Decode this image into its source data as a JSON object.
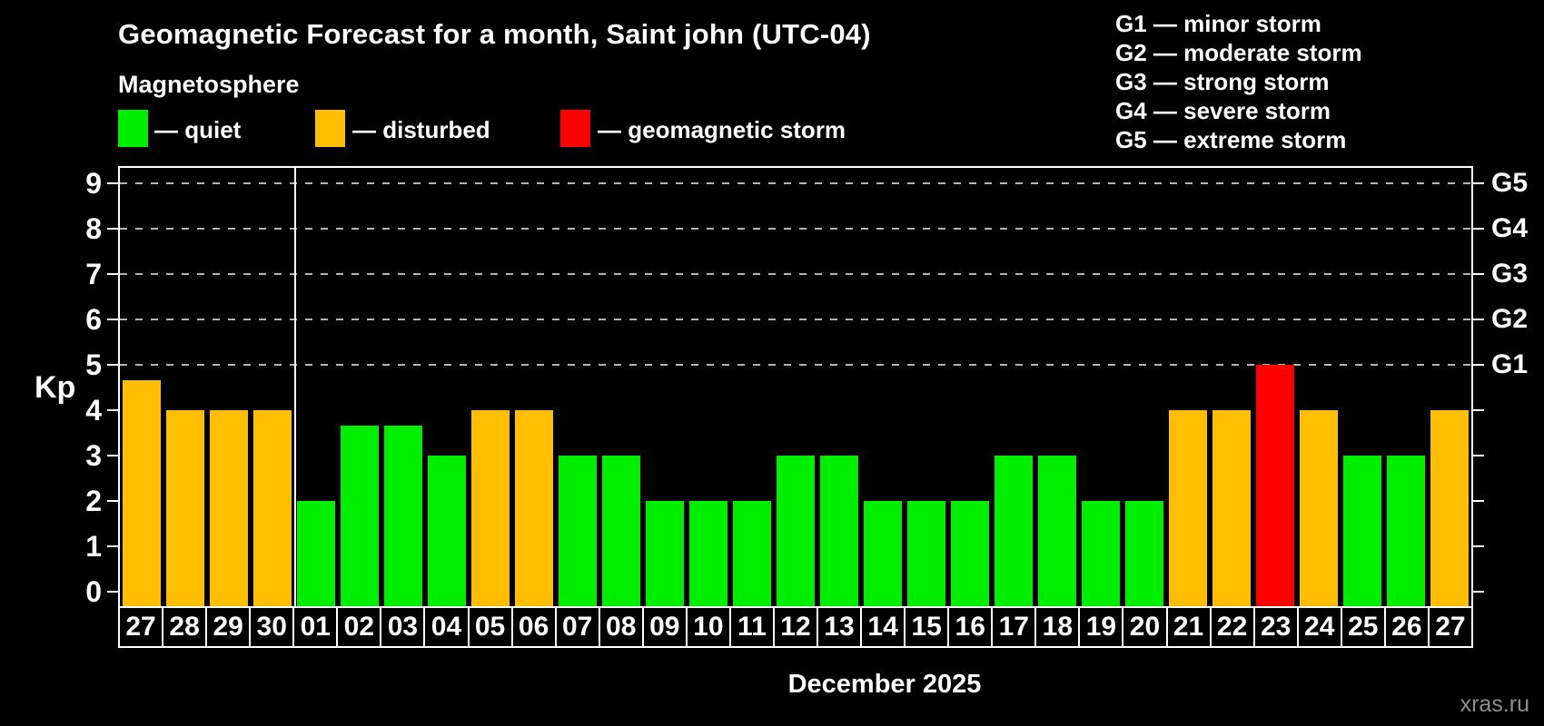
{
  "title": "Geomagnetic Forecast for a month, Saint john (UTC-04)",
  "subtitle": "Magnetosphere",
  "legend": {
    "quiet_label": "— quiet",
    "disturbed_label": "— disturbed",
    "storm_label": "— geomagnetic storm"
  },
  "g_scale_legend": [
    "G1 — minor storm",
    "G2 — moderate storm",
    "G3 — strong storm",
    "G4 — severe storm",
    "G5 — extreme storm"
  ],
  "colors": {
    "background": "#000000",
    "quiet": "#00ee00",
    "disturbed": "#ffbe00",
    "storm": "#fe0000",
    "grid": "#b4b4b4",
    "axis": "#ffffff",
    "watermark": "#8d8d8d"
  },
  "axis": {
    "ylabel": "Kp",
    "yticks": [
      0,
      1,
      2,
      3,
      4,
      5,
      6,
      7,
      8,
      9
    ],
    "right_ticks": [
      {
        "kp": 5,
        "label": "G1"
      },
      {
        "kp": 6,
        "label": "G2"
      },
      {
        "kp": 7,
        "label": "G3"
      },
      {
        "kp": 8,
        "label": "G4"
      },
      {
        "kp": 9,
        "label": "G5"
      }
    ]
  },
  "xlabel": "December 2025",
  "watermark": "xras.ru",
  "chart_data": {
    "type": "bar",
    "title": "Geomagnetic Forecast for a month, Saint john (UTC-04)",
    "ylabel": "Kp",
    "ylim": [
      0,
      9
    ],
    "gridline_kp": [
      5,
      6,
      7,
      8,
      9
    ],
    "month_separator_after_index": 3,
    "categories": [
      "27",
      "28",
      "29",
      "30",
      "01",
      "02",
      "03",
      "04",
      "05",
      "06",
      "07",
      "08",
      "09",
      "10",
      "11",
      "12",
      "13",
      "14",
      "15",
      "16",
      "17",
      "18",
      "19",
      "20",
      "21",
      "22",
      "23",
      "24",
      "25",
      "26",
      "27"
    ],
    "values": [
      4.67,
      4,
      4,
      4,
      2,
      3.67,
      3.67,
      3,
      4,
      4,
      3,
      3,
      2,
      2,
      2,
      3,
      3,
      2,
      2,
      2,
      3,
      3,
      2,
      2,
      4,
      4,
      5,
      4,
      3,
      3,
      4
    ],
    "status": [
      "disturbed",
      "disturbed",
      "disturbed",
      "disturbed",
      "quiet",
      "quiet",
      "quiet",
      "quiet",
      "disturbed",
      "disturbed",
      "quiet",
      "quiet",
      "quiet",
      "quiet",
      "quiet",
      "quiet",
      "quiet",
      "quiet",
      "quiet",
      "quiet",
      "quiet",
      "quiet",
      "quiet",
      "quiet",
      "disturbed",
      "disturbed",
      "storm",
      "disturbed",
      "quiet",
      "quiet",
      "disturbed"
    ],
    "legend_position": "top-left",
    "grid": "dashed horizontal at Kp 5-9 only"
  }
}
